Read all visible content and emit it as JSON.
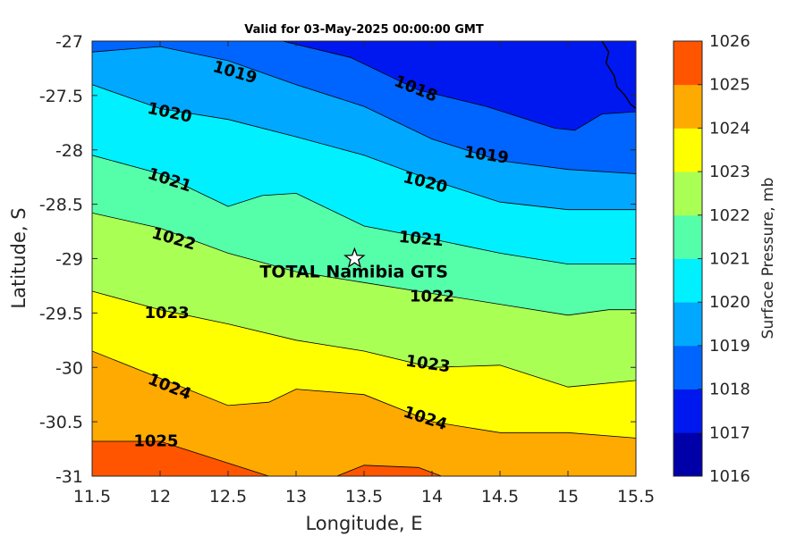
{
  "chart_data": {
    "type": "contour",
    "title": "Valid for 03-May-2025 00:00:00 GMT",
    "xlabel": "Longitude, E",
    "ylabel": "Latitude, S",
    "xlim": [
      11.5,
      15.5
    ],
    "ylim": [
      -31,
      -27
    ],
    "x_ticks": [
      "11.5",
      "12",
      "12.5",
      "13",
      "13.5",
      "14",
      "14.5",
      "15",
      "15.5"
    ],
    "y_ticks": [
      "-27",
      "-27.5",
      "-28",
      "-28.5",
      "-29",
      "-29.5",
      "-30",
      "-30.5",
      "-31"
    ],
    "colorbar": {
      "label": "Surface Pressure, mb",
      "levels": [
        1016,
        1017,
        1018,
        1019,
        1020,
        1021,
        1022,
        1023,
        1024,
        1025,
        1026
      ],
      "tick_labels": [
        "1016",
        "1017",
        "1018",
        "1019",
        "1020",
        "1021",
        "1022",
        "1023",
        "1024",
        "1025",
        "1026"
      ],
      "colors": [
        "#0000a8",
        "#0018f0",
        "#0064ff",
        "#00a8ff",
        "#00f0ff",
        "#55ffaa",
        "#aaff55",
        "#ffff00",
        "#ffaa00",
        "#ff5500",
        "#ff0000"
      ]
    },
    "contour_lines": [
      {
        "level": 1018,
        "points": [
          [
            12.9,
            -27
          ],
          [
            13.4,
            -27.15
          ],
          [
            13.9,
            -27.45
          ],
          [
            14.4,
            -27.6
          ],
          [
            14.9,
            -27.8
          ],
          [
            15.05,
            -27.82
          ],
          [
            15.25,
            -27.67
          ],
          [
            15.5,
            -27.65
          ]
        ]
      },
      {
        "level": 1019,
        "points": [
          [
            11.5,
            -27.1
          ],
          [
            12,
            -27.05
          ],
          [
            12.5,
            -27.18
          ],
          [
            13,
            -27.4
          ],
          [
            13.5,
            -27.6
          ],
          [
            14,
            -27.9
          ],
          [
            14.5,
            -28.1
          ],
          [
            15,
            -28.18
          ],
          [
            15.5,
            -28.22
          ]
        ]
      },
      {
        "level": 1020,
        "points": [
          [
            11.5,
            -27.4
          ],
          [
            12,
            -27.62
          ],
          [
            12.5,
            -27.72
          ],
          [
            13,
            -27.88
          ],
          [
            13.5,
            -28.05
          ],
          [
            14,
            -28.28
          ],
          [
            14.5,
            -28.48
          ],
          [
            15,
            -28.55
          ],
          [
            15.5,
            -28.55
          ]
        ]
      },
      {
        "level": 1021,
        "points": [
          [
            11.5,
            -28.05
          ],
          [
            12,
            -28.22
          ],
          [
            12.5,
            -28.52
          ],
          [
            12.75,
            -28.42
          ],
          [
            13,
            -28.4
          ],
          [
            13.5,
            -28.7
          ],
          [
            14,
            -28.82
          ],
          [
            14.5,
            -28.95
          ],
          [
            15,
            -29.05
          ],
          [
            15.5,
            -29.05
          ]
        ]
      },
      {
        "level": 1022,
        "points": [
          [
            11.5,
            -28.58
          ],
          [
            12,
            -28.72
          ],
          [
            12.5,
            -28.95
          ],
          [
            13,
            -29.12
          ],
          [
            13.5,
            -29.22
          ],
          [
            14,
            -29.32
          ],
          [
            14.5,
            -29.42
          ],
          [
            15,
            -29.52
          ],
          [
            15.3,
            -29.47
          ],
          [
            15.5,
            -29.47
          ]
        ]
      },
      {
        "level": 1023,
        "points": [
          [
            11.5,
            -29.3
          ],
          [
            12,
            -29.47
          ],
          [
            12.5,
            -29.6
          ],
          [
            13,
            -29.75
          ],
          [
            13.5,
            -29.85
          ],
          [
            14,
            -30
          ],
          [
            14.5,
            -29.98
          ],
          [
            15,
            -30.18
          ],
          [
            15.5,
            -30.12
          ]
        ]
      },
      {
        "level": 1024,
        "points": [
          [
            11.5,
            -29.85
          ],
          [
            12,
            -30.1
          ],
          [
            12.5,
            -30.35
          ],
          [
            12.8,
            -30.32
          ],
          [
            13,
            -30.2
          ],
          [
            13.5,
            -30.25
          ],
          [
            14,
            -30.5
          ],
          [
            14.5,
            -30.6
          ],
          [
            15,
            -30.6
          ],
          [
            15.5,
            -30.65
          ]
        ]
      },
      {
        "level": 1025,
        "points": [
          [
            11.5,
            -30.68
          ],
          [
            12,
            -30.68
          ],
          [
            12.5,
            -30.88
          ],
          [
            12.8,
            -31
          ]
        ]
      },
      {
        "level": 1025,
        "points": [
          [
            13.3,
            -31
          ],
          [
            13.5,
            -30.9
          ],
          [
            13.9,
            -30.92
          ],
          [
            14.07,
            -31
          ]
        ]
      }
    ],
    "contour_labels": [
      {
        "text": "1019",
        "level": 1019,
        "x": 12.55,
        "y": -27.29,
        "angle": 16
      },
      {
        "text": "1018",
        "level": 1018,
        "x": 13.88,
        "y": -27.44,
        "angle": 22
      },
      {
        "text": "1020",
        "level": 1020,
        "x": 12.07,
        "y": -27.66,
        "angle": 12
      },
      {
        "text": "1019",
        "level": 1019,
        "x": 14.4,
        "y": -28.05,
        "angle": 8
      },
      {
        "text": "1021",
        "level": 1021,
        "x": 12.07,
        "y": -28.28,
        "angle": 18
      },
      {
        "text": "1020",
        "level": 1020,
        "x": 13.95,
        "y": -28.3,
        "angle": 14
      },
      {
        "text": "1021",
        "level": 1021,
        "x": 13.92,
        "y": -28.82,
        "angle": 5
      },
      {
        "text": "1022",
        "level": 1022,
        "x": 12.1,
        "y": -28.82,
        "angle": 16
      },
      {
        "text": "1022",
        "level": 1022,
        "x": 14,
        "y": -29.35,
        "angle": 0
      },
      {
        "text": "1023",
        "level": 1023,
        "x": 12.05,
        "y": -29.5,
        "angle": 0
      },
      {
        "text": "1023",
        "level": 1023,
        "x": 13.97,
        "y": -29.97,
        "angle": 8
      },
      {
        "text": "1024",
        "level": 1024,
        "x": 12.07,
        "y": -30.18,
        "angle": 22
      },
      {
        "text": "1024",
        "level": 1024,
        "x": 13.95,
        "y": -30.47,
        "angle": 18
      },
      {
        "text": "1025",
        "level": 1025,
        "x": 11.97,
        "y": -30.68,
        "angle": 0
      }
    ],
    "site": {
      "label": "TOTAL Namibia GTS",
      "lon": 13.43,
      "lat": -29.0,
      "marker": "white star"
    },
    "coastline": [
      [
        15.25,
        -27
      ],
      [
        15.3,
        -27.1
      ],
      [
        15.28,
        -27.2
      ],
      [
        15.34,
        -27.32
      ],
      [
        15.36,
        -27.42
      ],
      [
        15.42,
        -27.5
      ],
      [
        15.46,
        -27.58
      ],
      [
        15.5,
        -27.62
      ]
    ]
  }
}
